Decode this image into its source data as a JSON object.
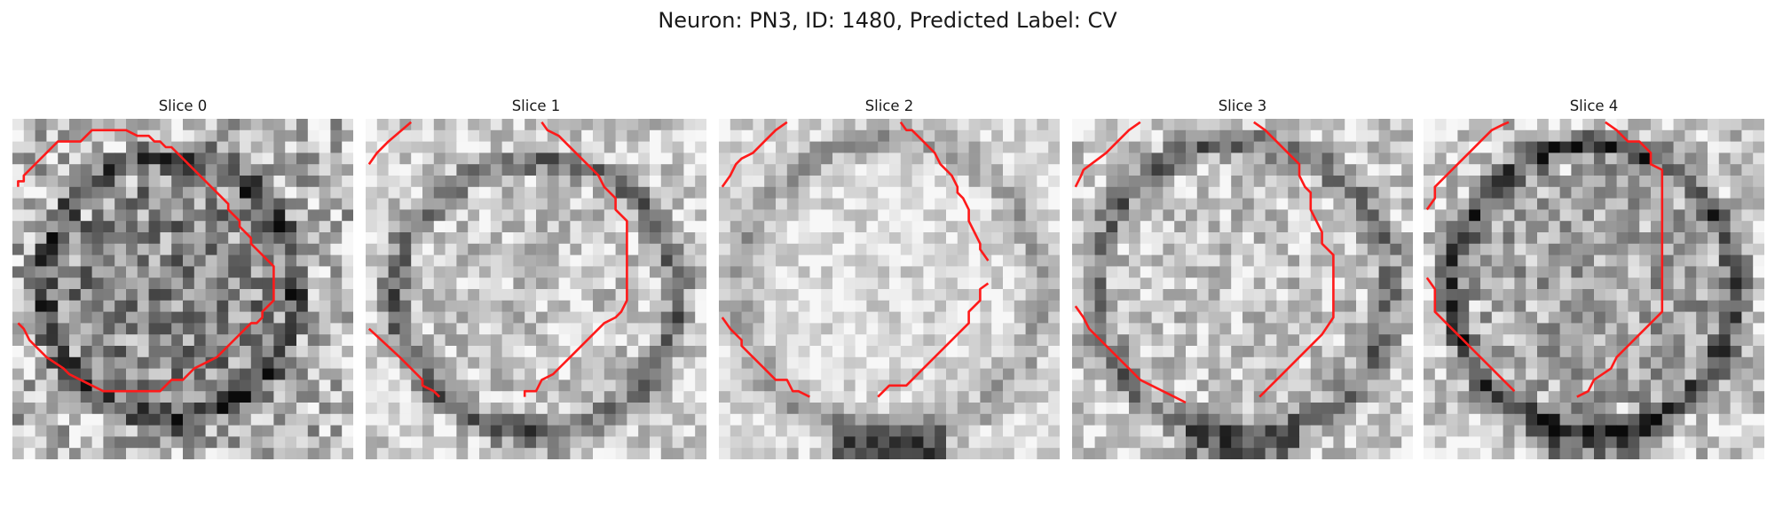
{
  "figure": {
    "title": "Neuron: PN3, ID: 1480, Predicted Label: CV"
  },
  "colors": {
    "contour": "#ff1a1a",
    "background": "#ffffff",
    "grayscale_dark": "#101010",
    "grayscale_light": "#f5f5f5"
  },
  "slices": [
    {
      "title": "Slice 0",
      "contour": "closed-octagon",
      "interior": "mottled-gray",
      "edge_ring": "dark-speckled"
    },
    {
      "title": "Slice 1",
      "contour": "partial-arcs",
      "interior": "light-gray",
      "edge_ring": "dark-lower"
    },
    {
      "title": "Slice 2",
      "contour": "partial-arcs",
      "interior": "very-light-gray",
      "edge_ring": "dark-bottom"
    },
    {
      "title": "Slice 3",
      "contour": "partial-arcs",
      "interior": "light-gray",
      "edge_ring": "dark-ring"
    },
    {
      "title": "Slice 4",
      "contour": "partial-arcs",
      "interior": "medium-gray",
      "edge_ring": "dark-ring"
    }
  ]
}
